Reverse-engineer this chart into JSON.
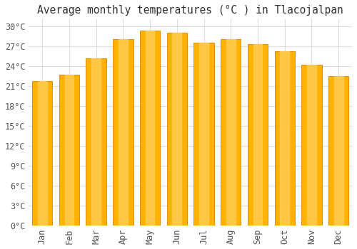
{
  "months": [
    "Jan",
    "Feb",
    "Mar",
    "Apr",
    "May",
    "Jun",
    "Jul",
    "Aug",
    "Sep",
    "Oct",
    "Nov",
    "Dec"
  ],
  "temperatures": [
    21.7,
    22.7,
    25.1,
    28.0,
    29.3,
    29.0,
    27.5,
    28.0,
    27.3,
    26.2,
    24.2,
    22.5
  ],
  "bar_color_main": "#FFB300",
  "bar_color_edge": "#E08000",
  "bar_color_light": "#FFD060",
  "title": "Average monthly temperatures (°C ) in Tlacojalpan",
  "ylim": [
    0,
    31
  ],
  "yticks": [
    0,
    3,
    6,
    9,
    12,
    15,
    18,
    21,
    24,
    27,
    30
  ],
  "ytick_labels": [
    "0°C",
    "3°C",
    "6°C",
    "9°C",
    "12°C",
    "15°C",
    "18°C",
    "21°C",
    "24°C",
    "27°C",
    "30°C"
  ],
  "background_color": "#FFFFFF",
  "grid_color": "#DDDDDD",
  "title_fontsize": 10.5,
  "tick_fontsize": 8.5,
  "bar_width": 0.75
}
